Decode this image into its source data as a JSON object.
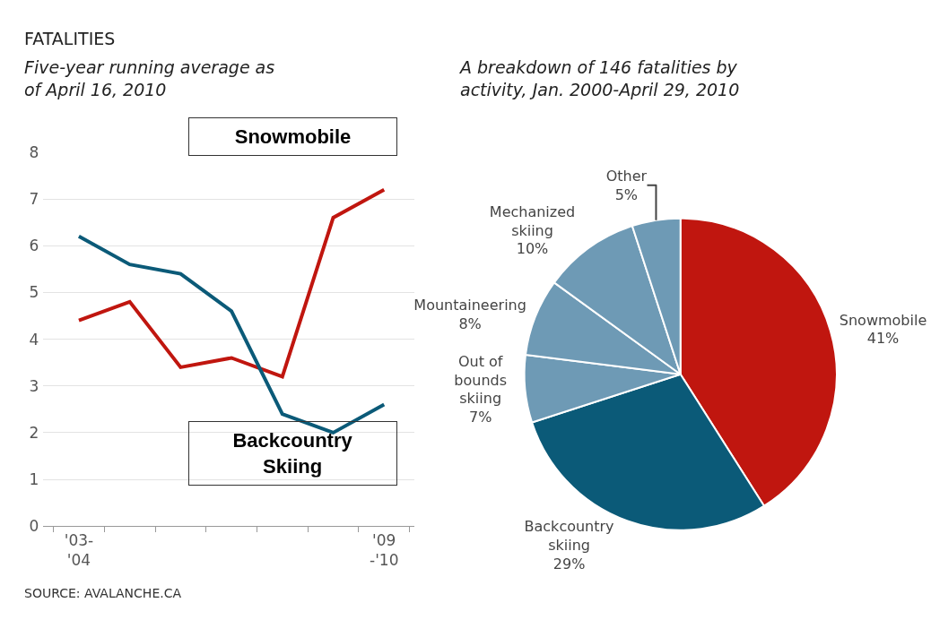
{
  "chart_data": [
    {
      "type": "line",
      "title": "FATALITIES",
      "subtitle": "Five-year running average as\nof April 16, 2010",
      "categories": [
        "'03-\n'04",
        null,
        null,
        null,
        null,
        null,
        "'09\n-'10"
      ],
      "series": [
        {
          "name": "Snowmobile",
          "color": "#c0160f",
          "values": [
            4.4,
            4.8,
            3.4,
            3.6,
            3.2,
            6.6,
            7.2
          ]
        },
        {
          "name": "Backcountry\nSkiing",
          "color": "#0b5a78",
          "values": [
            6.2,
            5.6,
            5.4,
            4.6,
            2.4,
            2.0,
            2.6
          ]
        }
      ],
      "ylim": [
        0,
        8
      ],
      "yticks": [
        0,
        1,
        2,
        3,
        4,
        5,
        6,
        7,
        8
      ],
      "grid": "y",
      "marker": "none",
      "line_style": "solid",
      "annotations": [
        "SOURCE: AVALANCHE.CA"
      ]
    },
    {
      "type": "pie",
      "subtitle": "A breakdown of 146 fatalities by\nactivity, Jan. 2000-April 29, 2010",
      "categories": [
        "Snowmobile",
        "Backcountry\nskiing",
        "Out of\nbounds\nskiing",
        "Mountaineering",
        "Mechanized\nskiing",
        "Other"
      ],
      "values": [
        41,
        29,
        7,
        8,
        10,
        5
      ],
      "colors": [
        "#c0160f",
        "#0b5a78",
        "#6e9ab5",
        "#6e9ab5",
        "#6e9ab5",
        "#6e9ab5"
      ],
      "value_labels": [
        "41%",
        "29%",
        "7%",
        "8%",
        "10%",
        "5%"
      ]
    }
  ]
}
